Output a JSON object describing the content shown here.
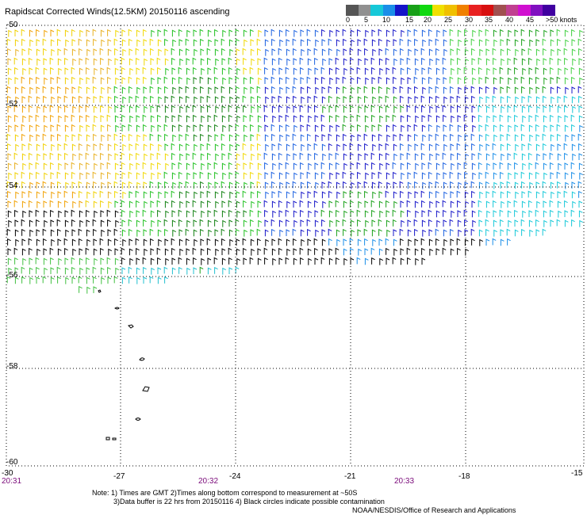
{
  "title": "Rapidscat Corrected Winds(12.5KM) 20150116 ascending",
  "legend": {
    "labels": [
      "0",
      "5",
      "10",
      "15",
      "20",
      "25",
      "30",
      "35",
      "40",
      "45",
      ">50 knots"
    ],
    "colors": [
      "#555555",
      "#909090",
      "#16c8d8",
      "#1a8ee8",
      "#1414c8",
      "#18a018",
      "#10d810",
      "#f0e000",
      "#f0c000",
      "#f08000",
      "#e82020",
      "#d81010",
      "#a05050",
      "#c04090",
      "#d010d0",
      "#8010c0",
      "#4000a0"
    ]
  },
  "axes": {
    "lon_labels": [
      "-30",
      "-27",
      "-24",
      "-21",
      "-18",
      "-15"
    ],
    "lat_labels": [
      "-50",
      "-52",
      "-54",
      "-56",
      "-58",
      "-60"
    ]
  },
  "times": [
    "20:31",
    "20:32",
    "20:33"
  ],
  "notes": {
    "line1": "Note: 1) Times are GMT 2)Times along bottom correspond to measurement at ~50S",
    "line2": "3)Data buffer is 22 hrs from 20150116 4) Black circles indicate possible contamination",
    "line3": "NOAA/NESDIS/Office of Research and Applications"
  }
}
